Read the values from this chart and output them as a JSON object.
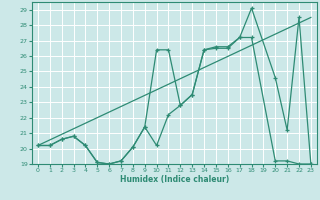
{
  "background_color": "#cce8e8",
  "grid_color": "#ffffff",
  "line_color": "#2e8b74",
  "xlabel": "Humidex (Indice chaleur)",
  "xlim": [
    -0.5,
    23.5
  ],
  "ylim": [
    19,
    29.5
  ],
  "yticks": [
    19,
    20,
    21,
    22,
    23,
    24,
    25,
    26,
    27,
    28,
    29
  ],
  "xticks": [
    0,
    1,
    2,
    3,
    4,
    5,
    6,
    7,
    8,
    9,
    10,
    11,
    12,
    13,
    14,
    15,
    16,
    17,
    18,
    19,
    20,
    21,
    22,
    23
  ],
  "line1_x": [
    0,
    1,
    2,
    3,
    4,
    5,
    6,
    7,
    8,
    9,
    10,
    11,
    12,
    13,
    14,
    15,
    16,
    17,
    18,
    20,
    21,
    22,
    23
  ],
  "line1_y": [
    20.2,
    20.2,
    20.6,
    20.8,
    20.2,
    19.1,
    19.0,
    19.2,
    20.1,
    21.4,
    26.4,
    26.4,
    22.8,
    23.5,
    26.4,
    26.6,
    26.6,
    27.2,
    29.1,
    24.6,
    21.2,
    28.5,
    19.0
  ],
  "line2_x": [
    0,
    1,
    2,
    3,
    4,
    5,
    6,
    7,
    8,
    9,
    10,
    11,
    12,
    13,
    14,
    15,
    16,
    17,
    18,
    20,
    21,
    22,
    23
  ],
  "line2_y": [
    20.2,
    20.2,
    20.6,
    20.8,
    20.2,
    19.1,
    19.0,
    19.2,
    20.1,
    21.4,
    20.2,
    22.2,
    22.8,
    23.5,
    26.4,
    26.5,
    26.5,
    27.2,
    27.2,
    19.2,
    19.2,
    19.0,
    19.0
  ],
  "line3_x": [
    0,
    23
  ],
  "line3_y": [
    20.2,
    28.5
  ]
}
